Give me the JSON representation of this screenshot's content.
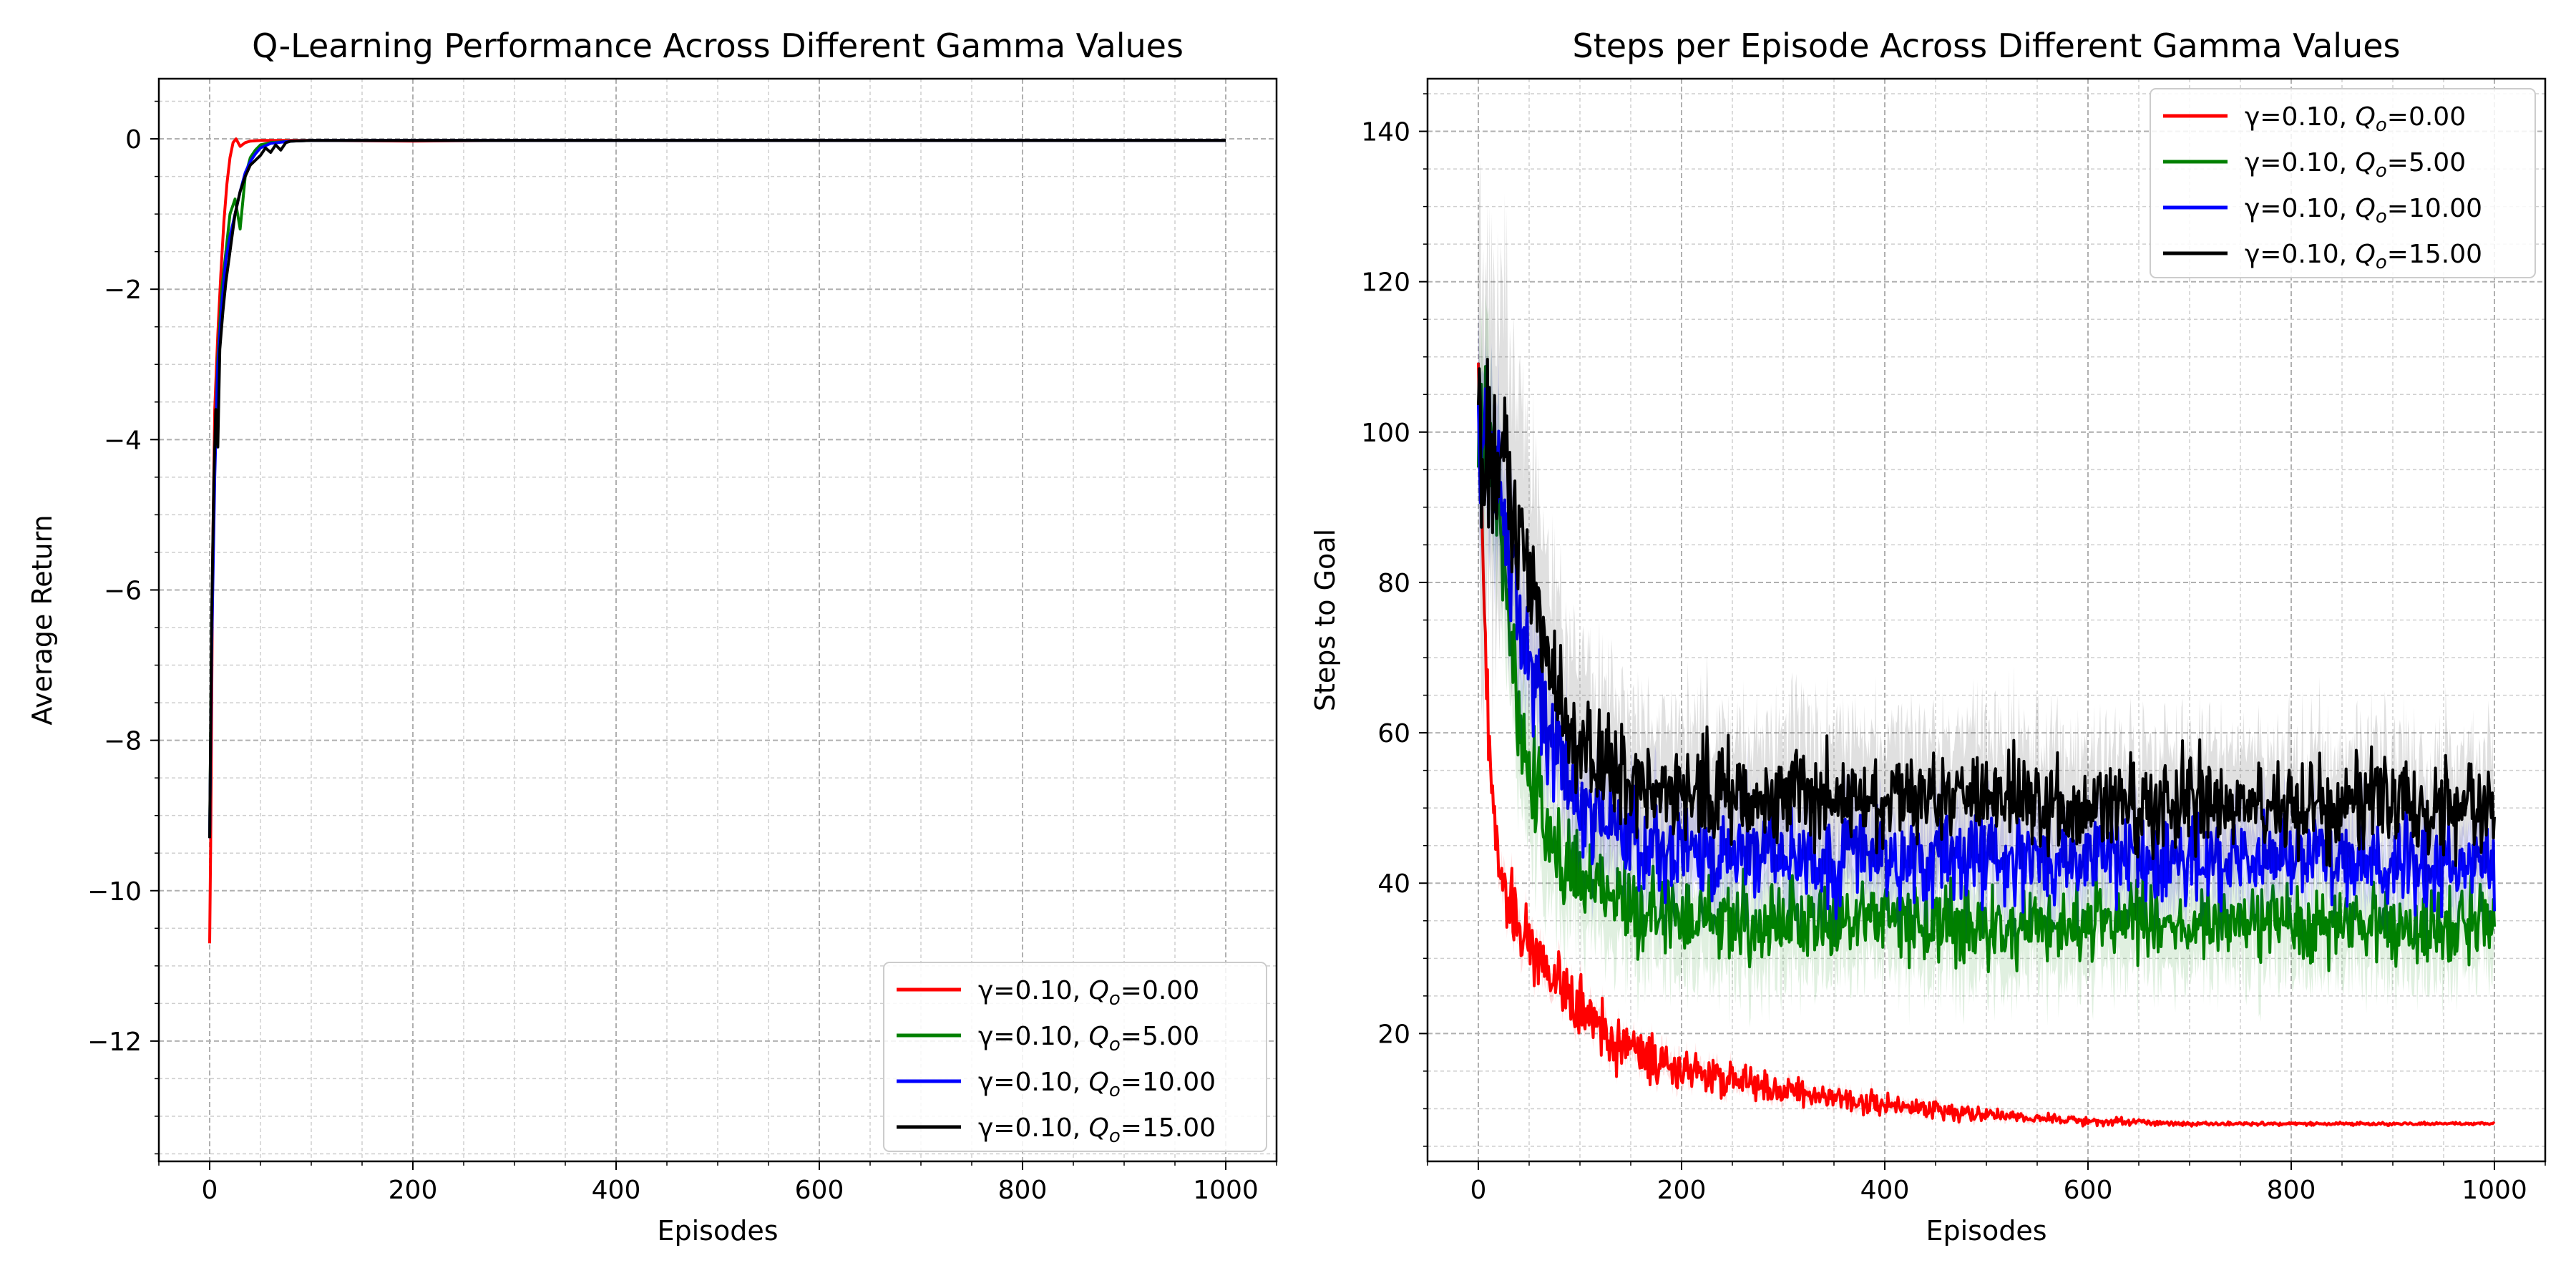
{
  "chart_data": [
    {
      "type": "line",
      "title": "Q-Learning Performance Across Different Gamma Values",
      "xlabel": "Episodes",
      "ylabel": "Average Return",
      "xlim": [
        -50,
        1050
      ],
      "ylim": [
        -13.6,
        0.8
      ],
      "xticks": [
        0,
        200,
        400,
        600,
        800,
        1000
      ],
      "xtick_labels": [
        "0",
        "200",
        "400",
        "600",
        "800",
        "1000"
      ],
      "yticks": [
        0,
        -2,
        -4,
        -6,
        -8,
        -10,
        -12
      ],
      "ytick_labels": [
        "0",
        "−2",
        "−4",
        "−6",
        "−8",
        "−10",
        "−12"
      ],
      "grid": true,
      "legend_position": "lower-right",
      "series": [
        {
          "gamma_label": "γ=0.10, ",
          "q_label": "=0.00",
          "color": "#ff0000",
          "points": [
            [
              0,
              -10.7
            ],
            [
              1,
              -9.4
            ],
            [
              3,
              -5.5
            ],
            [
              5,
              -3.6
            ],
            [
              8,
              -2.6
            ],
            [
              11,
              -1.8
            ],
            [
              14,
              -1.1
            ],
            [
              17,
              -0.6
            ],
            [
              20,
              -0.25
            ],
            [
              23,
              -0.05
            ],
            [
              26,
              0.0
            ],
            [
              30,
              -0.1
            ],
            [
              35,
              -0.05
            ],
            [
              40,
              -0.03
            ],
            [
              50,
              -0.02
            ],
            [
              70,
              -0.02
            ],
            [
              100,
              -0.02
            ],
            [
              200,
              -0.03
            ],
            [
              300,
              -0.02
            ],
            [
              400,
              -0.02
            ],
            [
              500,
              -0.02
            ],
            [
              600,
              -0.02
            ],
            [
              700,
              -0.02
            ],
            [
              800,
              -0.02
            ],
            [
              900,
              -0.02
            ],
            [
              1000,
              -0.02
            ]
          ]
        },
        {
          "gamma_label": "γ=0.10, ",
          "q_label": "=5.00",
          "color": "#008000",
          "points": [
            [
              0,
              -9.3
            ],
            [
              2,
              -6.5
            ],
            [
              5,
              -4.2
            ],
            [
              8,
              -2.9
            ],
            [
              12,
              -2.0
            ],
            [
              16,
              -1.5
            ],
            [
              20,
              -1.0
            ],
            [
              25,
              -0.8
            ],
            [
              30,
              -1.2
            ],
            [
              35,
              -0.5
            ],
            [
              40,
              -0.25
            ],
            [
              45,
              -0.15
            ],
            [
              50,
              -0.08
            ],
            [
              60,
              -0.05
            ],
            [
              80,
              -0.03
            ],
            [
              100,
              -0.02
            ],
            [
              200,
              -0.02
            ],
            [
              400,
              -0.02
            ],
            [
              600,
              -0.02
            ],
            [
              800,
              -0.02
            ],
            [
              1000,
              -0.02
            ]
          ]
        },
        {
          "gamma_label": "γ=0.10, ",
          "q_label": "=10.00",
          "color": "#0000ff",
          "points": [
            [
              0,
              -9.3
            ],
            [
              2,
              -6.8
            ],
            [
              5,
              -4.5
            ],
            [
              8,
              -3.0
            ],
            [
              12,
              -2.2
            ],
            [
              16,
              -1.6
            ],
            [
              20,
              -1.3
            ],
            [
              25,
              -1.0
            ],
            [
              30,
              -0.7
            ],
            [
              35,
              -0.45
            ],
            [
              40,
              -0.3
            ],
            [
              45,
              -0.2
            ],
            [
              50,
              -0.12
            ],
            [
              60,
              -0.06
            ],
            [
              80,
              -0.03
            ],
            [
              100,
              -0.02
            ],
            [
              200,
              -0.02
            ],
            [
              400,
              -0.02
            ],
            [
              600,
              -0.02
            ],
            [
              800,
              -0.02
            ],
            [
              1000,
              -0.02
            ]
          ]
        },
        {
          "gamma_label": "γ=0.10, ",
          "q_label": "=15.00",
          "color": "#000000",
          "points": [
            [
              0,
              -9.3
            ],
            [
              2,
              -6.4
            ],
            [
              4,
              -4.6
            ],
            [
              6,
              -3.6
            ],
            [
              8,
              -4.1
            ],
            [
              10,
              -2.8
            ],
            [
              13,
              -2.3
            ],
            [
              16,
              -1.9
            ],
            [
              20,
              -1.5
            ],
            [
              25,
              -1.0
            ],
            [
              30,
              -0.7
            ],
            [
              35,
              -0.5
            ],
            [
              40,
              -0.35
            ],
            [
              50,
              -0.22
            ],
            [
              55,
              -0.12
            ],
            [
              60,
              -0.18
            ],
            [
              65,
              -0.08
            ],
            [
              70,
              -0.15
            ],
            [
              75,
              -0.05
            ],
            [
              80,
              -0.03
            ],
            [
              100,
              -0.02
            ],
            [
              200,
              -0.02
            ],
            [
              400,
              -0.02
            ],
            [
              600,
              -0.02
            ],
            [
              800,
              -0.02
            ],
            [
              1000,
              -0.02
            ]
          ]
        }
      ]
    },
    {
      "type": "line",
      "title": "Steps per Episode Across Different Gamma Values",
      "xlabel": "Episodes",
      "ylabel": "Steps to Goal",
      "xlim": [
        -50,
        1050
      ],
      "ylim": [
        3,
        147
      ],
      "xticks": [
        0,
        200,
        400,
        600,
        800,
        1000
      ],
      "xtick_labels": [
        "0",
        "200",
        "400",
        "600",
        "800",
        "1000"
      ],
      "yticks": [
        20,
        40,
        60,
        80,
        100,
        120,
        140
      ],
      "ytick_labels": [
        "20",
        "40",
        "60",
        "80",
        "100",
        "120",
        "140"
      ],
      "grid": true,
      "legend_position": "upper-right",
      "series": [
        {
          "gamma_label": "γ=0.10,  ",
          "q_label": "=0.00",
          "color": "#ff0000",
          "trend": [
            [
              0,
              112
            ],
            [
              5,
              80
            ],
            [
              10,
              60
            ],
            [
              20,
              42
            ],
            [
              30,
              37
            ],
            [
              50,
              32
            ],
            [
              75,
              27
            ],
            [
              100,
              23
            ],
            [
              150,
              18
            ],
            [
              200,
              15
            ],
            [
              300,
              12.5
            ],
            [
              400,
              10.5
            ],
            [
              500,
              9.2
            ],
            [
              600,
              8.4
            ],
            [
              700,
              8.0
            ],
            [
              800,
              8.0
            ],
            [
              1000,
              8.0
            ]
          ],
          "noise": [
            [
              0,
              3
            ],
            [
              100,
              2.5
            ],
            [
              300,
              1.2
            ],
            [
              500,
              0.6
            ],
            [
              700,
              0.15
            ],
            [
              1000,
              0.1
            ]
          ],
          "band": [
            [
              0,
              2
            ],
            [
              100,
              1.5
            ],
            [
              300,
              1.0
            ],
            [
              600,
              0.4
            ],
            [
              1000,
              0.2
            ]
          ]
        },
        {
          "gamma_label": "γ=0.10,  ",
          "q_label": "=5.00",
          "color": "#008000",
          "trend": [
            [
              0,
              100
            ],
            [
              10,
              98
            ],
            [
              20,
              90
            ],
            [
              30,
              72
            ],
            [
              40,
              62
            ],
            [
              50,
              55
            ],
            [
              75,
              45
            ],
            [
              100,
              40
            ],
            [
              150,
              36
            ],
            [
              200,
              35
            ],
            [
              1000,
              34.5
            ]
          ],
          "noise": [
            [
              0,
              6
            ],
            [
              100,
              3.5
            ],
            [
              200,
              3.2
            ],
            [
              1000,
              3.2
            ]
          ],
          "band": [
            [
              0,
              10
            ],
            [
              100,
              7
            ],
            [
              1000,
              6
            ]
          ]
        },
        {
          "gamma_label": "γ=0.10,  ",
          "q_label": "=10.00",
          "color": "#0000ff",
          "trend": [
            [
              0,
              98
            ],
            [
              10,
              97
            ],
            [
              20,
              94
            ],
            [
              30,
              85
            ],
            [
              40,
              76
            ],
            [
              50,
              70
            ],
            [
              75,
              58
            ],
            [
              100,
              50
            ],
            [
              150,
              46
            ],
            [
              200,
              44
            ],
            [
              1000,
              42.5
            ]
          ],
          "noise": [
            [
              0,
              6
            ],
            [
              100,
              3.8
            ],
            [
              1000,
              3.6
            ]
          ],
          "band": [
            [
              0,
              10
            ],
            [
              100,
              6
            ],
            [
              1000,
              5
            ]
          ]
        },
        {
          "gamma_label": "γ=0.10,  ",
          "q_label": "=15.00",
          "color": "#000000",
          "trend": [
            [
              0,
              96
            ],
            [
              20,
              95
            ],
            [
              40,
              88
            ],
            [
              50,
              80
            ],
            [
              60,
              74
            ],
            [
              75,
              65
            ],
            [
              100,
              58
            ],
            [
              125,
              55
            ],
            [
              150,
              53
            ],
            [
              200,
              52
            ],
            [
              400,
              51.5
            ],
            [
              1000,
              49.5
            ]
          ],
          "noise": [
            [
              0,
              7
            ],
            [
              100,
              4
            ],
            [
              1000,
              4
            ]
          ],
          "band": [
            [
              0,
              25
            ],
            [
              60,
              14
            ],
            [
              150,
              9
            ],
            [
              1000,
              7
            ]
          ]
        }
      ]
    }
  ]
}
